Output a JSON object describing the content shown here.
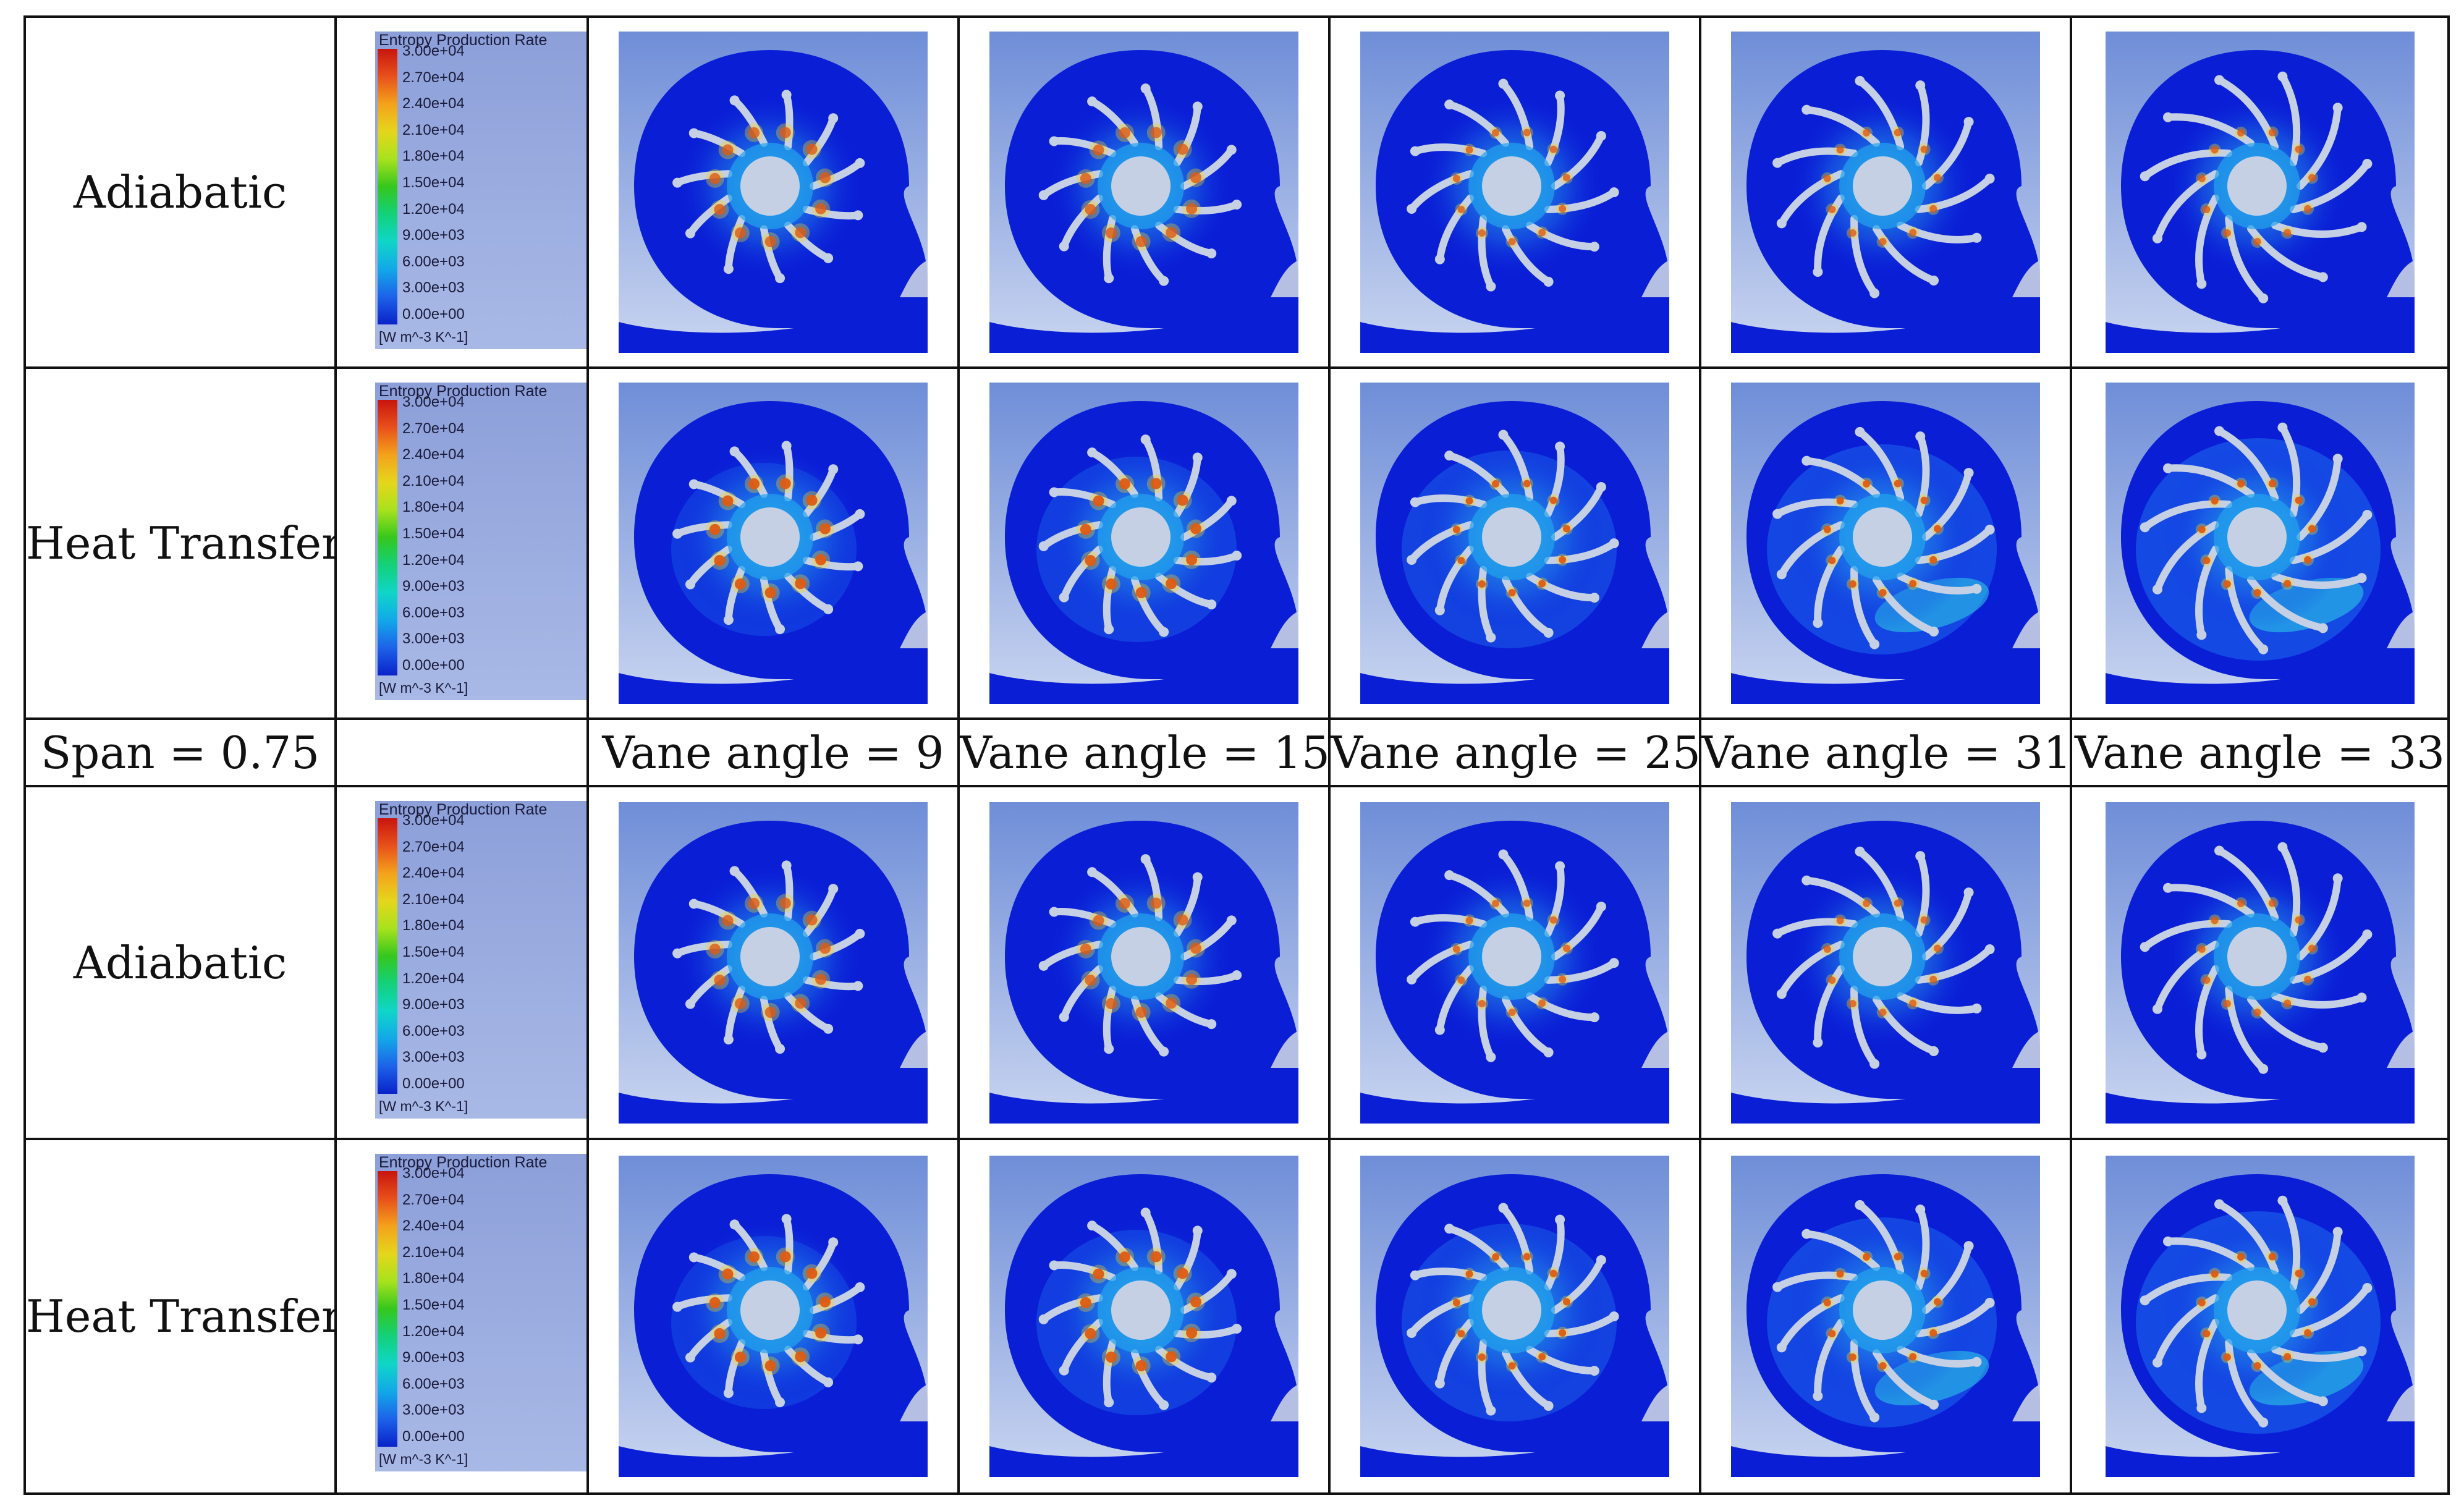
{
  "table": {
    "span_header": "Span = 0.75",
    "vane_headers": [
      "Vane angle = 9",
      "Vane angle = 15",
      "Vane angle = 25",
      "Vane angle = 31",
      "Vane angle = 33"
    ],
    "rows": [
      {
        "label": "Adiabatic",
        "heat": false
      },
      {
        "label": "Heat Transfer",
        "heat": true
      },
      {
        "label": "Adiabatic",
        "heat": false
      },
      {
        "label": "Heat Transfer",
        "heat": true
      }
    ]
  },
  "legend": {
    "title": "Entropy Production Rate",
    "ticks": [
      "3.00e+04",
      "2.70e+04",
      "2.40e+04",
      "2.10e+04",
      "1.80e+04",
      "1.50e+04",
      "1.20e+04",
      "9.00e+03",
      "6.00e+03",
      "3.00e+03",
      "0.00e+00"
    ],
    "unit": "[W m^-3 K^-1]",
    "colors": [
      "#c8150e",
      "#e8501a",
      "#f4a21b",
      "#e5d61c",
      "#a8e21d",
      "#35c71d",
      "#13d17a",
      "#0fd6c8",
      "#12a8e8",
      "#1d62e8",
      "#0a22c8"
    ]
  },
  "colors": {
    "field": "#0a1ed6",
    "background_top": "#6f8ed8",
    "background_bottom": "#c9d5f0",
    "blade": "#c6d0e4",
    "hot": "#d41c0e"
  }
}
